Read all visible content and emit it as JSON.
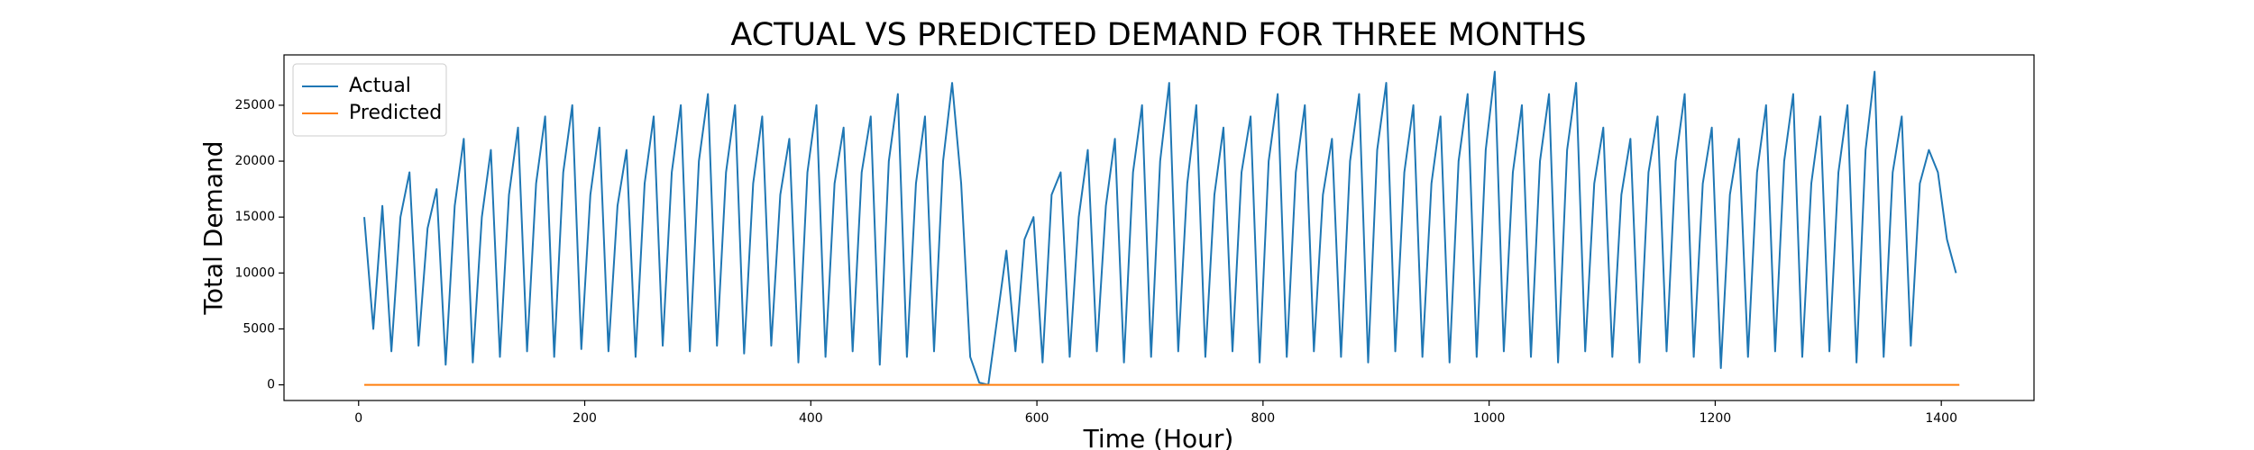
{
  "chart_data": {
    "type": "line",
    "title": "ACTUAL VS PREDICTED DEMAND FOR THREE MONTHS",
    "x_label": "Time (Hour)",
    "y_label": "Total Demand",
    "xlim": [
      -66,
      1482
    ],
    "ylim": [
      -1400,
      29500
    ],
    "xticks": [
      0,
      200,
      400,
      600,
      800,
      1000,
      1200,
      1400
    ],
    "yticks": [
      0,
      5000,
      10000,
      15000,
      20000,
      25000
    ],
    "legend": "upper left",
    "series": [
      {
        "name": "Actual",
        "color": "#1f77b4",
        "x": [
          5,
          13,
          21,
          29,
          37,
          45,
          53,
          61,
          69,
          77,
          85,
          93,
          101,
          109,
          117,
          125,
          133,
          141,
          149,
          157,
          165,
          173,
          181,
          189,
          197,
          205,
          213,
          221,
          229,
          237,
          245,
          253,
          261,
          269,
          277,
          285,
          293,
          301,
          309,
          317,
          325,
          333,
          341,
          349,
          357,
          365,
          373,
          381,
          389,
          397,
          405,
          413,
          421,
          429,
          437,
          445,
          453,
          461,
          469,
          477,
          485,
          493,
          501,
          509,
          517,
          525,
          533,
          541,
          549,
          557,
          565,
          573,
          581,
          589,
          597,
          605,
          613,
          621,
          629,
          637,
          645,
          653,
          661,
          669,
          677,
          685,
          693,
          701,
          709,
          717,
          725,
          733,
          741,
          749,
          757,
          765,
          773,
          781,
          789,
          797,
          805,
          813,
          821,
          829,
          837,
          845,
          853,
          861,
          869,
          877,
          885,
          893,
          901,
          909,
          917,
          925,
          933,
          941,
          949,
          957,
          965,
          973,
          981,
          989,
          997,
          1005,
          1013,
          1021,
          1029,
          1037,
          1045,
          1053,
          1061,
          1069,
          1077,
          1085,
          1093,
          1101,
          1109,
          1117,
          1125,
          1133,
          1141,
          1149,
          1157,
          1165,
          1173,
          1181,
          1189,
          1197,
          1205,
          1213,
          1221,
          1229,
          1237,
          1245,
          1253,
          1261,
          1269,
          1277,
          1285,
          1293,
          1301,
          1309,
          1317,
          1325,
          1333,
          1341,
          1349,
          1357,
          1365,
          1373,
          1381,
          1389,
          1397,
          1405,
          1413
        ],
        "values": [
          15000,
          5000,
          16000,
          3000,
          15000,
          19000,
          3500,
          14000,
          17500,
          1800,
          16000,
          22000,
          2000,
          15000,
          21000,
          2500,
          17000,
          23000,
          3000,
          18000,
          24000,
          2500,
          19000,
          25000,
          3200,
          17000,
          23000,
          3000,
          16000,
          21000,
          2500,
          18000,
          24000,
          3500,
          19000,
          25000,
          3000,
          20000,
          26000,
          3500,
          19000,
          25000,
          2800,
          18000,
          24000,
          3500,
          17000,
          22000,
          2000,
          19000,
          25000,
          2500,
          18000,
          23000,
          3000,
          19000,
          24000,
          1800,
          20000,
          26000,
          2500,
          18000,
          24000,
          3000,
          20000,
          27000,
          18000,
          2500,
          200,
          0,
          6000,
          12000,
          3000,
          13000,
          15000,
          2000,
          17000,
          19000,
          2500,
          15000,
          21000,
          3000,
          16000,
          22000,
          2000,
          19000,
          25000,
          2500,
          20000,
          27000,
          3000,
          18000,
          25000,
          2500,
          17000,
          23000,
          3000,
          19000,
          24000,
          2000,
          20000,
          26000,
          2500,
          19000,
          25000,
          3000,
          17000,
          22000,
          2500,
          20000,
          26000,
          2000,
          21000,
          27000,
          3000,
          19000,
          25000,
          2500,
          18000,
          24000,
          2000,
          20000,
          26000,
          2500,
          21000,
          28000,
          3000,
          19000,
          25000,
          2500,
          20000,
          26000,
          2000,
          21000,
          27000,
          3000,
          18000,
          23000,
          2500,
          17000,
          22000,
          2000,
          19000,
          24000,
          3000,
          20000,
          26000,
          2500,
          18000,
          23000,
          1500,
          17000,
          22000,
          2500,
          19000,
          25000,
          3000,
          20000,
          26000,
          2500,
          18000,
          24000,
          3000,
          19000,
          25000,
          2000,
          21000,
          28000,
          2500,
          19000,
          24000,
          3500,
          18000,
          21000,
          19000,
          13000,
          10000
        ]
      },
      {
        "name": "Predicted",
        "color": "#ff7f0e",
        "x": [
          5,
          1416
        ],
        "values": [
          0,
          0
        ]
      }
    ]
  }
}
